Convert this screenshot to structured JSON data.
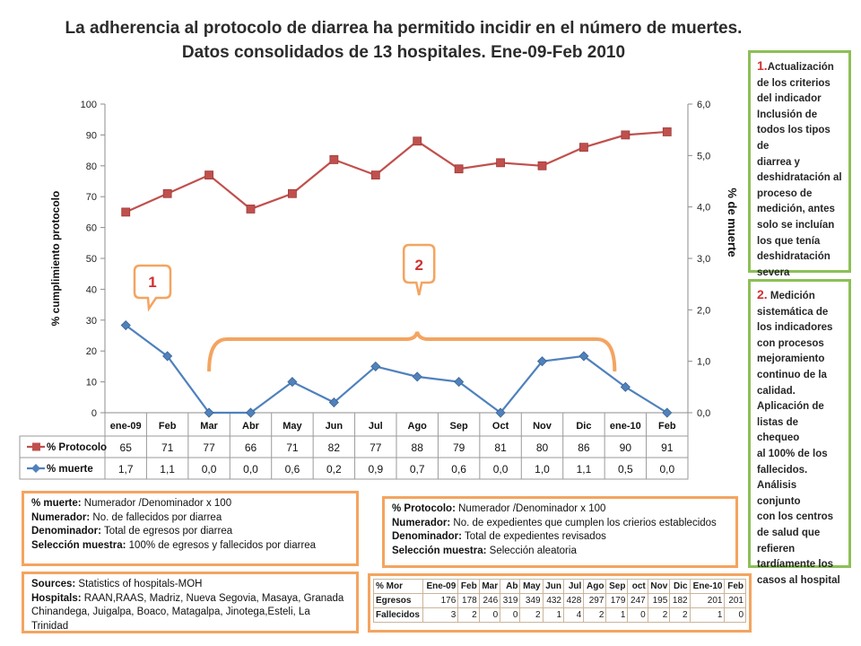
{
  "slide": {
    "title_line1": "La adherencia al protocolo de diarrea ha permitido incidir en el número de muertes.",
    "title_line2": "Datos consolidados de 13 hospitales. Ene-09-Feb 2010"
  },
  "chart_data": {
    "type": "line",
    "categories": [
      "ene-09",
      "Feb",
      "Mar",
      "Abr",
      "May",
      "Jun",
      "Jul",
      "Ago",
      "Sep",
      "Oct",
      "Nov",
      "Dic",
      "ene-10",
      "Feb"
    ],
    "series": [
      {
        "name": "% Protocolo",
        "axis": "left",
        "color": "#c0504d",
        "marker": "square",
        "values": [
          65,
          71,
          77,
          66,
          71,
          82,
          77,
          88,
          79,
          81,
          80,
          86,
          90,
          91
        ],
        "labels": [
          "65",
          "71",
          "77",
          "66",
          "71",
          "82",
          "77",
          "88",
          "79",
          "81",
          "80",
          "86",
          "90",
          "91"
        ]
      },
      {
        "name": "% muerte",
        "axis": "right",
        "color": "#4f81bd",
        "marker": "diamond",
        "values": [
          1.7,
          1.1,
          0.0,
          0.0,
          0.6,
          0.2,
          0.9,
          0.7,
          0.6,
          0.0,
          1.0,
          1.1,
          0.5,
          0.0
        ],
        "labels": [
          "1,7",
          "1,1",
          "0,0",
          "0,0",
          "0,6",
          "0,2",
          "0,9",
          "0,7",
          "0,6",
          "0,0",
          "1,0",
          "1,1",
          "0,5",
          "0,0"
        ]
      }
    ],
    "ylabel": "% cumplimiento protocolo",
    "y2label": "% de muerte",
    "ylim": [
      0,
      100
    ],
    "y2lim": [
      0,
      6
    ],
    "yticks": [
      "0",
      "10",
      "20",
      "30",
      "40",
      "50",
      "60",
      "70",
      "80",
      "90",
      "100"
    ],
    "y2ticks": [
      "0,0",
      "1,0",
      "2,0",
      "3,0",
      "4,0",
      "5,0",
      "6,0"
    ],
    "grid": false,
    "legend": "table-below",
    "annotations": [
      {
        "label": "1",
        "point_index": 0,
        "color": "#f4a460",
        "label_color": "#d03030"
      },
      {
        "label": "2",
        "range": [
          2,
          12
        ],
        "color": "#f4a460",
        "label_color": "#d03030"
      }
    ]
  },
  "side_box_1": {
    "number": "1.",
    "lines": [
      "Actualización",
      "de los criterios",
      "del indicador",
      "Inclusión de",
      "todos los tipos de",
      "diarrea  y",
      "deshidratación al",
      "proceso de",
      "medición, antes",
      "solo se incluían",
      "los que tenía",
      "deshidratación",
      "severa"
    ]
  },
  "side_box_2": {
    "number": "2.",
    "lines": [
      " Medición",
      "sistemática de",
      "los indicadores",
      "con procesos",
      "mejoramiento",
      "continuo de la",
      "calidad.",
      "Aplicación de",
      "listas de chequeo",
      "al 100% de los",
      "fallecidos.",
      "Análisis conjunto",
      "con los centros",
      "de salud que",
      "refieren",
      "tardíamente los",
      "casos al hospital"
    ]
  },
  "def_muerte": {
    "line1_label": "% muerte:",
    "line1_text": "  Numerador /Denominador  x 100",
    "line2_label": "Numerador:",
    "line2_text": " No. de fallecidos  por diarrea",
    "line3_label": "Denominador:",
    "line3_text": " Total de egresos por diarrea",
    "line4_label": "Selección  muestra:",
    "line4_text": " 100% de egresos y fallecidos por diarrea"
  },
  "def_protocolo": {
    "line1_label": "% Protocolo:",
    "line1_text": " Numerador /Denominador  x 100",
    "line2_label": "Numerador:",
    "line2_text": " No. de expedientes  que cumplen los crierios establecidos",
    "line3_label": "Denominador:",
    "line3_text": " Total de expedientes revisados",
    "line4_label": "Selección  muestra:",
    "line4_text": "  Selección aleatoria"
  },
  "sources": {
    "line1_label": "Sources:",
    "line1_text": " Statistics  of hospitals-MOH",
    "line2_label": "Hospitals:",
    "line2_text": " RAAN,RAAS, Madriz, Nueva Segovia,  Masaya, Granada",
    "line3_text": "Chinandega, Juigalpa, Boaco, Matagalpa, Jinotega,Esteli, La Trinidad"
  },
  "counts_table": {
    "header": [
      "% Mor",
      "Ene-09",
      "Feb",
      "Mar",
      "Ab",
      "May",
      "Jun",
      "Jul",
      "Ago",
      "Sep",
      "oct",
      "Nov",
      "Dic",
      "Ene-10",
      "Feb"
    ],
    "rows": [
      [
        "Egresos",
        "176",
        "178",
        "246",
        "319",
        "349",
        "432",
        "428",
        "297",
        "179",
        "247",
        "195",
        "182",
        "201",
        "201"
      ],
      [
        "Fallecidos",
        "3",
        "2",
        "0",
        "0",
        "2",
        "1",
        "4",
        "2",
        "1",
        "0",
        "2",
        "2",
        "1",
        "0"
      ]
    ]
  }
}
